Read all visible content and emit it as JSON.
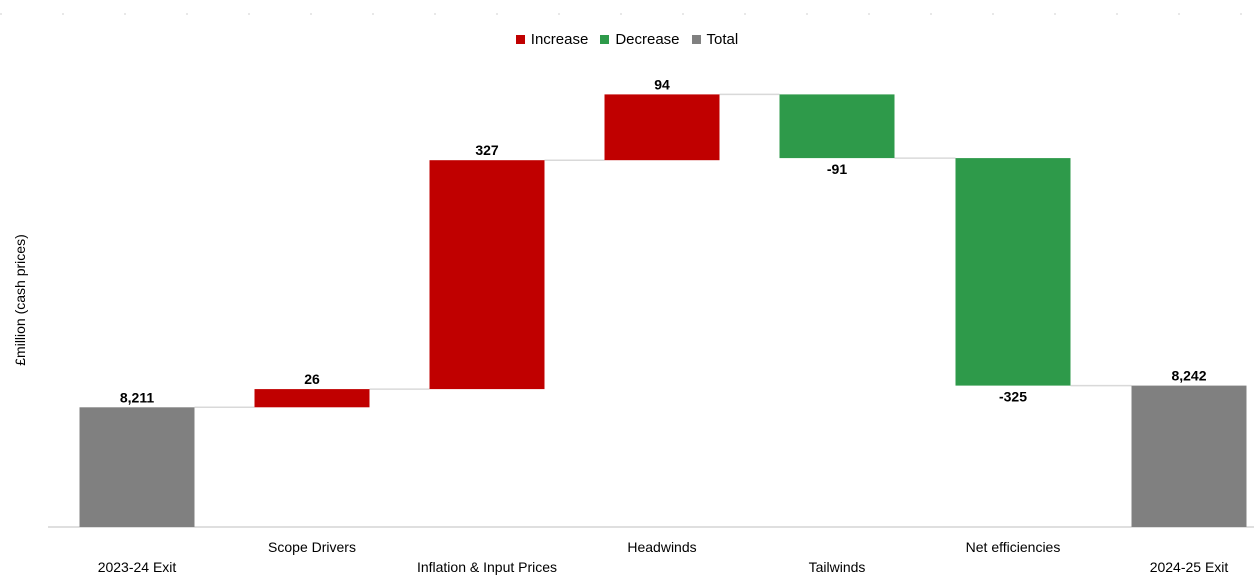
{
  "chart_data": {
    "type": "waterfall",
    "ylabel": "£million (cash prices)",
    "legend": [
      {
        "label": "Increase",
        "color": "#c00000"
      },
      {
        "label": "Decrease",
        "color": "#2e9a4a"
      },
      {
        "label": "Total",
        "color": "#808080"
      }
    ],
    "categories": [
      "2023-24 Exit",
      "Scope Drivers",
      "Inflation & Input Prices",
      "Headwinds",
      "Tailwinds",
      "Net efficiencies",
      "2024-25 Exit"
    ],
    "values": [
      8211,
      26,
      327,
      94,
      -91,
      -325,
      8242
    ],
    "kinds": [
      "total",
      "increase",
      "increase",
      "increase",
      "decrease",
      "decrease",
      "total"
    ],
    "value_labels": [
      "8,211",
      "26",
      "327",
      "94",
      "-91",
      "-325",
      "8,242"
    ],
    "legend_placement": "top-center",
    "grid": false
  }
}
